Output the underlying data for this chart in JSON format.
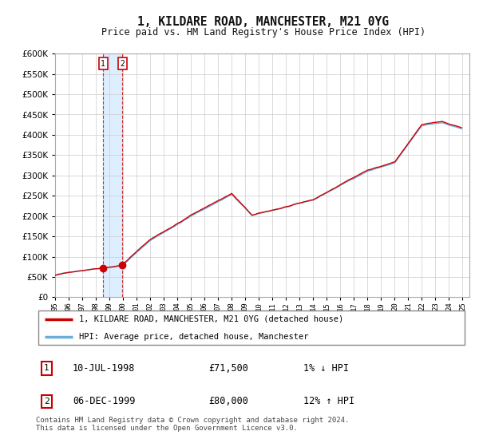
{
  "title": "1, KILDARE ROAD, MANCHESTER, M21 0YG",
  "subtitle": "Price paid vs. HM Land Registry's House Price Index (HPI)",
  "legend_line1": "1, KILDARE ROAD, MANCHESTER, M21 0YG (detached house)",
  "legend_line2": "HPI: Average price, detached house, Manchester",
  "transaction1_date": "10-JUL-1998",
  "transaction1_price": "£71,500",
  "transaction1_hpi": "1% ↓ HPI",
  "transaction2_date": "06-DEC-1999",
  "transaction2_price": "£80,000",
  "transaction2_hpi": "12% ↑ HPI",
  "footer": "Contains HM Land Registry data © Crown copyright and database right 2024.\nThis data is licensed under the Open Government Licence v3.0.",
  "hpi_color": "#6baed6",
  "price_color": "#cc0000",
  "marker_color": "#cc0000",
  "vband_color": "#ddeeff",
  "ylim": [
    0,
    600000
  ],
  "yticks": [
    0,
    50000,
    100000,
    150000,
    200000,
    250000,
    300000,
    350000,
    400000,
    450000,
    500000,
    550000,
    600000
  ],
  "background_color": "#ffffff",
  "grid_color": "#cccccc"
}
